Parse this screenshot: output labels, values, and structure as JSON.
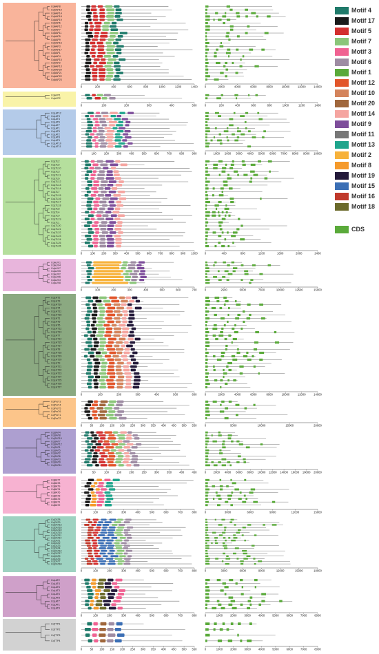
{
  "legend": [
    {
      "label": "Motif 4",
      "color": "#1f7a6a"
    },
    {
      "label": "Motif 17",
      "color": "#1a1a1a"
    },
    {
      "label": "Motif 5",
      "color": "#d32f2f"
    },
    {
      "label": "Motif 7",
      "color": "#8bc67a"
    },
    {
      "label": "Motif 3",
      "color": "#f06292"
    },
    {
      "label": "Motif 6",
      "color": "#9e8ca3"
    },
    {
      "label": "Motif 1",
      "color": "#5aaa3a"
    },
    {
      "label": "Motif 12",
      "color": "#e2562b"
    },
    {
      "label": "Motif 10",
      "color": "#d4845c"
    },
    {
      "label": "Motif 20",
      "color": "#a0673c"
    },
    {
      "label": "Motif 14",
      "color": "#f5a5a0"
    },
    {
      "label": "Motif 9",
      "color": "#7e4e9b"
    },
    {
      "label": "Motif 11",
      "color": "#777777"
    },
    {
      "label": "Motif 13",
      "color": "#1fa58c"
    },
    {
      "label": "Motif 2",
      "color": "#f7b23b"
    },
    {
      "label": "Motif 8",
      "color": "#f59a2b"
    },
    {
      "label": "Motif 19",
      "color": "#241a3a"
    },
    {
      "label": "Motif 15",
      "color": "#3b6fb5"
    },
    {
      "label": "Motif 16",
      "color": "#c0392b"
    },
    {
      "label": "Motif 18",
      "color": "#6b6a2b"
    }
  ],
  "cds_legend": {
    "label": "CDS",
    "color": "#5aaa3a"
  },
  "panels": [
    {
      "color": "#f9b49b",
      "motifs": [
        "#1a1a1a",
        "#d32f2f",
        "#d32f2f",
        "#8bc67a",
        "#1f7a6a"
      ],
      "genes": [
        "CqAAP8",
        "CqAAP10",
        "CqAAP14",
        "CqAAP18",
        "CqAAP19",
        "CqAAP6",
        "CqAAP12",
        "CqAAP7",
        "CqAAP11",
        "CqAAP5",
        "CqAAP9",
        "CqAAP16",
        "CqAAP3",
        "CqAAP17",
        "CqAAP1",
        "CqAAP4",
        "CqAAP15",
        "CqAAP2",
        "CqAAP13",
        "CqAAP20",
        "CqAAP21",
        "CqAAP22",
        "CqAAP23"
      ],
      "ticks": [
        "0",
        "200",
        "400",
        "600",
        "800",
        "1000",
        "1200",
        "1400"
      ],
      "gticks": [
        "0",
        "2000",
        "4000",
        "6000",
        "8000",
        "10000",
        "12000",
        "14000"
      ]
    },
    {
      "color": "#f9f3a8",
      "motifs": [
        "#1f7a6a",
        "#d32f2f",
        "#8bc67a",
        "#9e8ca3"
      ],
      "genes": [
        "CqANT1",
        "CqANT2"
      ],
      "ticks": [
        "0",
        "100",
        "200",
        "300",
        "400",
        "500"
      ],
      "gticks": [
        "0",
        "200",
        "400",
        "600",
        "800",
        "1000",
        "1200",
        "1400"
      ]
    },
    {
      "color": "#b4cbe9",
      "motifs": [
        "#1f7a6a",
        "#f06292",
        "#9e8ca3",
        "#f5a5a0",
        "#1fa58c",
        "#7e4e9b"
      ],
      "genes": [
        "CqLAT12",
        "CqLAT3",
        "CqLAT4",
        "CqLAT6",
        "CqLAT7",
        "CqLAT1",
        "CqLAT5",
        "CqLAT2",
        "CqLAT8",
        "CqLAT9",
        "CqLAT10",
        "CqLAT11"
      ],
      "ticks": [
        "0",
        "100",
        "200",
        "300",
        "400",
        "500",
        "600",
        "700",
        "800",
        "900"
      ],
      "gticks": [
        "0",
        "1000",
        "2000",
        "3000",
        "4000",
        "5000",
        "6000",
        "7000",
        "8000",
        "9000",
        "10000"
      ]
    },
    {
      "color": "#b5df9d",
      "motifs": [
        "#1f7a6a",
        "#f06292",
        "#9e8ca3",
        "#7e4e9b",
        "#f5a5a0"
      ],
      "genes": [
        "CqLTL2",
        "CqLTL5",
        "CqLTL10",
        "CqLTL3",
        "CqLTL11",
        "CqLTL6",
        "CqLTL12",
        "CqLTL13",
        "CqLTL14",
        "CqLTL7",
        "CqLTL15",
        "CqLTL16",
        "CqLTL17",
        "CqLTL18",
        "CqLTL8",
        "CqLTL4",
        "CqLTL9",
        "CqLTL19",
        "CqLTL1",
        "CqLTL20",
        "CqLTL21",
        "CqLTL22",
        "CqLTL23",
        "CqLTL24",
        "CqLTL25",
        "CqLTL26"
      ],
      "ticks": [
        "0",
        "100",
        "200",
        "300",
        "400",
        "500",
        "600",
        "700",
        "800",
        "900",
        "1000"
      ],
      "gticks": [
        "0",
        "400",
        "800",
        "1200",
        "1600",
        "2000",
        "2400"
      ]
    },
    {
      "color": "#e8b5dc",
      "motifs": [
        "#1f7a6a",
        "#f7b23b",
        "#8bc67a",
        "#9e8ca3",
        "#7e4e9b"
      ],
      "genes": [
        "CqAUX1",
        "CqAUX4",
        "CqAUX7",
        "CqAUX5",
        "CqAUX2",
        "CqAUX6",
        "CqAUX3",
        "CqAUX8"
      ],
      "ticks": [
        "0",
        "100",
        "200",
        "300",
        "400",
        "500",
        "600",
        "700"
      ],
      "gticks": [
        "0",
        "2500",
        "5000",
        "7500",
        "10000",
        "12500",
        "15000"
      ]
    },
    {
      "color": "#8ba981",
      "motifs": [
        "#1f7a6a",
        "#1a1a1a",
        "#8bc67a",
        "#e2562b",
        "#d4845c",
        "#f5a5a0",
        "#241a3a"
      ],
      "genes": [
        "CqLHT2",
        "CqLHT3",
        "CqLHT10",
        "CqLHT4",
        "CqLHT11",
        "CqLHT16",
        "CqLHT1",
        "CqLHT5",
        "CqLHT6",
        "CqLHT12",
        "CqLHT13",
        "CqLHT7",
        "CqLHT14",
        "CqLHT15",
        "CqLHT17",
        "CqLHT8",
        "CqLHT18",
        "CqLHT19",
        "CqLHT20",
        "CqLHT9",
        "CqLHT21",
        "CqLHT22",
        "CqLHT23",
        "CqLHT24",
        "CqLHT25",
        "CqLHT26",
        "CqLHT27"
      ],
      "ticks": [
        "0",
        "100",
        "200",
        "300",
        "400",
        "500",
        "600"
      ],
      "gticks": [
        "0",
        "2000",
        "4000",
        "6000",
        "8000",
        "10000",
        "12000",
        "14000"
      ]
    },
    {
      "color": "#fcc58a",
      "motifs": [
        "#1a1a1a",
        "#e2562b",
        "#a0673c",
        "#8bc67a",
        "#9e8ca3"
      ],
      "genes": [
        "CqProT3",
        "CqProT4",
        "CqProT5",
        "CqProT6",
        "CqProT1",
        "CqProT2"
      ],
      "ticks": [
        "0",
        "50",
        "100",
        "150",
        "200",
        "250",
        "300",
        "350",
        "400",
        "450",
        "500",
        "550"
      ],
      "gticks": [
        "0",
        "5000",
        "10000",
        "15000",
        "20000"
      ]
    },
    {
      "color": "#ad9fd0",
      "motifs": [
        "#1f7a6a",
        "#1a1a1a",
        "#d32f2f",
        "#e2562b",
        "#8bc67a",
        "#f5a5a0",
        "#9e8ca3"
      ],
      "genes": [
        "CqGAT4",
        "CqGAT8",
        "CqGAT10",
        "CqGAT7",
        "CqGAT12",
        "CqGAT1",
        "CqGAT5",
        "CqGAT2",
        "CqGAT6",
        "CqGAT3",
        "CqGAT9",
        "CqGAT11"
      ],
      "ticks": [
        "0",
        "50",
        "100",
        "150",
        "200",
        "250",
        "300",
        "350",
        "400",
        "450"
      ],
      "gticks": [
        "0",
        "2000",
        "4000",
        "6000",
        "8000",
        "10000",
        "12000",
        "14000",
        "16000",
        "18000",
        "20000"
      ]
    },
    {
      "color": "#f7b2d1",
      "motifs": [
        "#1a1a1a",
        "#f59a2b",
        "#f06292",
        "#1fa58c"
      ],
      "genes": [
        "CqBAT7",
        "CqBAT8",
        "CqBAT9",
        "CqBAT4",
        "CqBAT6",
        "CqBAT3",
        "CqBAT5",
        "CqBAT1",
        "CqBAT2"
      ],
      "ticks": [
        "0",
        "100",
        "200",
        "300",
        "400",
        "500",
        "600",
        "700",
        "800"
      ],
      "gticks": [
        "0",
        "3000",
        "6000",
        "9000",
        "12000",
        "15000"
      ]
    },
    {
      "color": "#9ed2c1",
      "motifs": [
        "#c0392b",
        "#d32f2f",
        "#3b6fb5",
        "#3b6fb5",
        "#8bc67a",
        "#9e8ca3"
      ],
      "genes": [
        "CqCAT8",
        "CqCAT9",
        "CqCAT13",
        "CqCAT16",
        "CqCAT10",
        "CqCAT15",
        "CqCAT11",
        "CqCAT14",
        "CqCAT1",
        "CqCAT2",
        "CqCAT3",
        "CqCAT4",
        "CqCAT12",
        "CqCAT17",
        "CqCAT5",
        "CqCAT6",
        "CqCAT7",
        "CqCAT18"
      ],
      "ticks": [
        "0",
        "100",
        "200",
        "300",
        "400",
        "500",
        "600",
        "700",
        "800"
      ],
      "gticks": [
        "0",
        "3000",
        "6000",
        "9000",
        "12000",
        "15000",
        "18000"
      ]
    },
    {
      "color": "#cfa0c9",
      "motifs": [
        "#1f7a6a",
        "#f59a2b",
        "#6b6a2b",
        "#241a3a",
        "#f06292"
      ],
      "genes": [
        "CqLAT2",
        "CqLAT4",
        "CqLAT5",
        "CqLAT3",
        "CqLAT6",
        "CqLAT8",
        "CqLAT7",
        "CqLAT1",
        "CqLAT9"
      ],
      "ticks": [
        "0",
        "100",
        "200",
        "300",
        "400",
        "500",
        "600",
        "700",
        "800"
      ],
      "gticks": [
        "0",
        "1000",
        "2000",
        "3000",
        "4000",
        "5000",
        "6000",
        "7000",
        "8000"
      ]
    },
    {
      "color": "#d2d2d2",
      "motifs": [
        "#1f7a6a",
        "#f06292",
        "#a0673c",
        "#9e8ca3",
        "#3b6fb5"
      ],
      "genes": [
        "CqTTP1",
        "CqTTP2",
        "CqTTP3",
        "CqTTP4"
      ],
      "ticks": [
        "0",
        "50",
        "100",
        "150",
        "200",
        "250",
        "300",
        "350",
        "400",
        "450",
        "500",
        "550"
      ],
      "gticks": [
        "0",
        "1000",
        "2000",
        "3000",
        "4000",
        "5000",
        "6000",
        "7000",
        "8000"
      ]
    }
  ]
}
